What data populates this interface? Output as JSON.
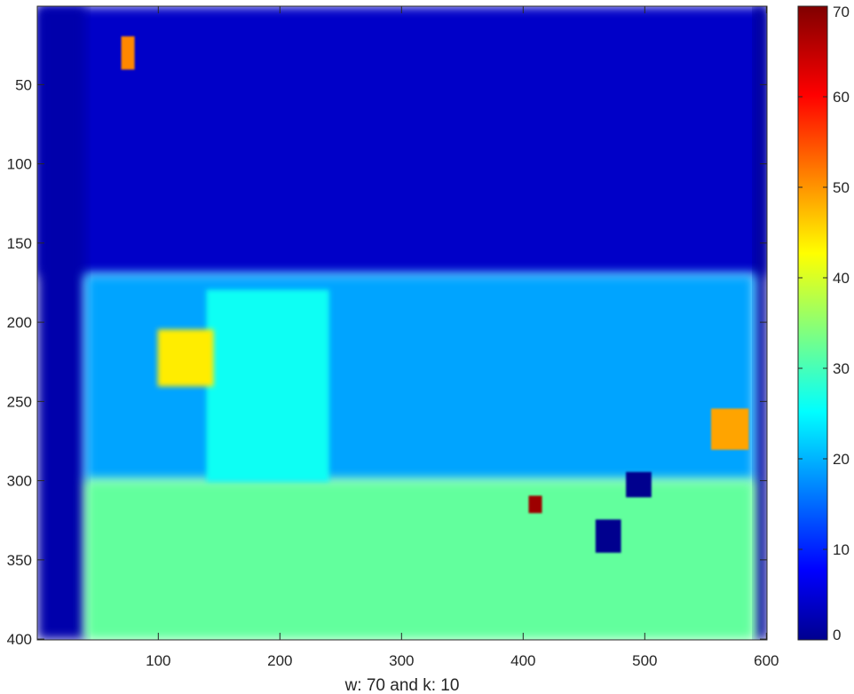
{
  "chart_data": {
    "type": "heatmap",
    "title": "",
    "xlabel": "w: 70 and k: 10",
    "ylabel": "",
    "colormap": "jet",
    "x_ticks": [
      100,
      200,
      300,
      400,
      500,
      600
    ],
    "y_ticks": [
      50,
      100,
      150,
      200,
      250,
      300,
      350,
      400
    ],
    "xlim": [
      0.5,
      600.5
    ],
    "ylim": [
      0.5,
      400.5
    ],
    "y_direction": "reverse",
    "colorbar": {
      "ticks": [
        0,
        10,
        20,
        30,
        40,
        50,
        60,
        70
      ],
      "range": [
        0,
        70
      ],
      "location": "right"
    },
    "grid": false,
    "regions": [
      {
        "label": "upper background",
        "x_range": [
          1,
          600
        ],
        "y_range": [
          1,
          170
        ],
        "approx_value": 5
      },
      {
        "label": "far-left strip",
        "x_range": [
          1,
          40
        ],
        "y_range": [
          1,
          400
        ],
        "approx_value": 3
      },
      {
        "label": "far-right strip",
        "x_range": [
          590,
          600
        ],
        "y_range": [
          1,
          400
        ],
        "approx_value": 2
      },
      {
        "label": "middle band",
        "x_range": [
          40,
          590
        ],
        "y_range": [
          170,
          300
        ],
        "approx_value": 20
      },
      {
        "label": "lower foreground",
        "x_range": [
          40,
          590
        ],
        "y_range": [
          300,
          400
        ],
        "approx_value": 33
      },
      {
        "label": "light-blue column",
        "x_range": [
          140,
          240
        ],
        "y_range": [
          180,
          300
        ],
        "approx_value": 27
      },
      {
        "label": "yellow patch",
        "x_range": [
          100,
          145
        ],
        "y_range": [
          205,
          240
        ],
        "approx_value": 45
      },
      {
        "label": "yellow-orange patch right",
        "x_range": [
          555,
          585
        ],
        "y_range": [
          255,
          280
        ],
        "approx_value": 50
      },
      {
        "label": "orange spot top-left",
        "x_range": [
          70,
          80
        ],
        "y_range": [
          20,
          40
        ],
        "approx_value": 52
      },
      {
        "label": "red spot",
        "x_range": [
          405,
          415
        ],
        "y_range": [
          310,
          320
        ],
        "approx_value": 68
      },
      {
        "label": "dark blue blob",
        "x_range": [
          460,
          480
        ],
        "y_range": [
          325,
          345
        ],
        "approx_value": 1
      },
      {
        "label": "dark blue blob 2",
        "x_range": [
          485,
          505
        ],
        "y_range": [
          295,
          310
        ],
        "approx_value": 1
      }
    ]
  }
}
